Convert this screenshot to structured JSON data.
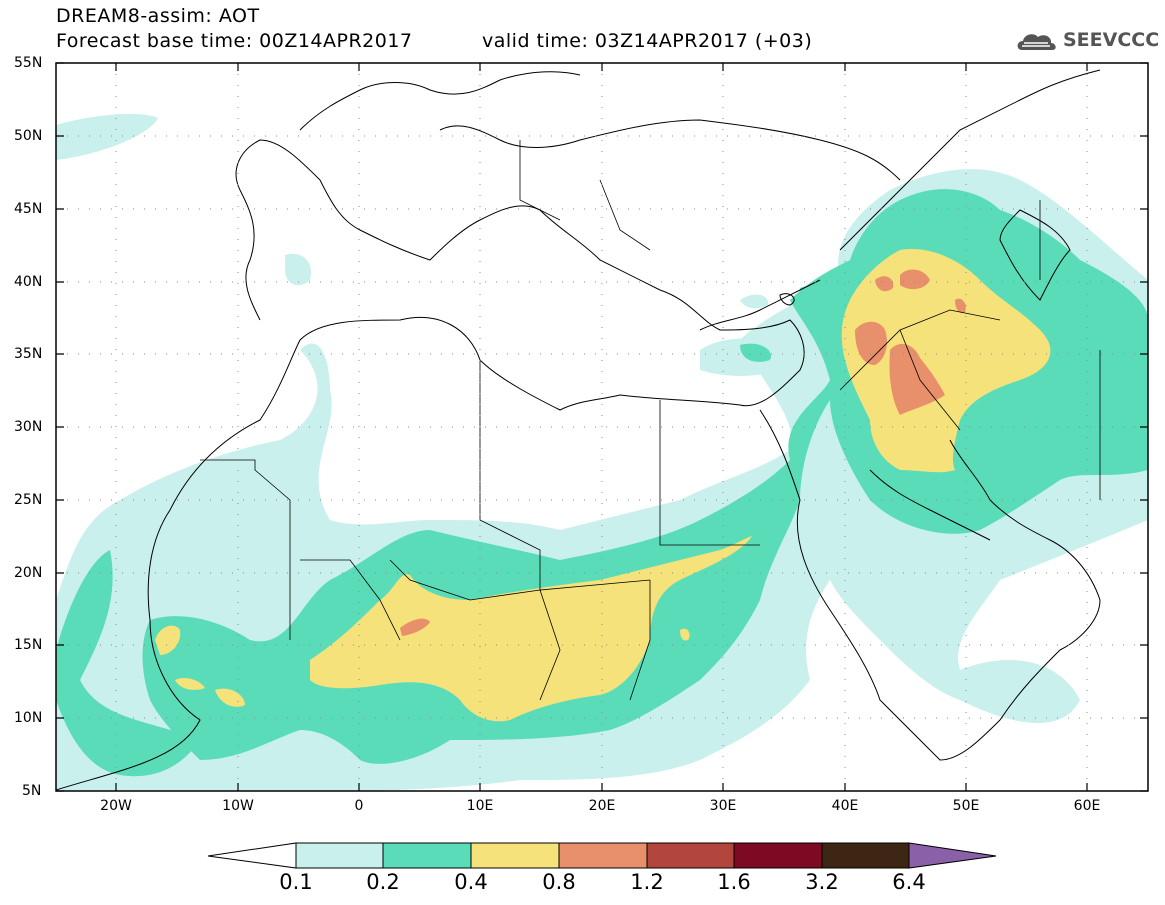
{
  "header": {
    "title": "DREAM8-assim: AOT",
    "base_time": "Forecast base time: 00Z14APR2017",
    "valid_time": "valid time: 03Z14APR2017 (+03)",
    "logo_text": "SEEVCCC"
  },
  "map": {
    "lat_labels": [
      "55N",
      "50N",
      "45N",
      "40N",
      "35N",
      "30N",
      "25N",
      "20N",
      "15N",
      "10N",
      "5N"
    ],
    "lon_labels": [
      "20W",
      "10W",
      "0",
      "10E",
      "20E",
      "30E",
      "40E",
      "50E",
      "60E"
    ],
    "lat_range": [
      5,
      55
    ],
    "lon_range": [
      -25,
      65
    ]
  },
  "legend": {
    "levels": [
      "0.1",
      "0.2",
      "0.4",
      "0.8",
      "1.2",
      "1.6",
      "3.2",
      "6.4"
    ],
    "colors": [
      "#ffffff",
      "#c9f0ec",
      "#5bdcb8",
      "#f5e27a",
      "#e88f6b",
      "#b3463c",
      "#7d0a22",
      "#3e2614",
      "#8a60a8"
    ]
  },
  "palette": {
    "c01": "#c9f0ec",
    "c02": "#5bdcb8",
    "c04": "#f5e27a",
    "c08": "#e88f6b"
  }
}
